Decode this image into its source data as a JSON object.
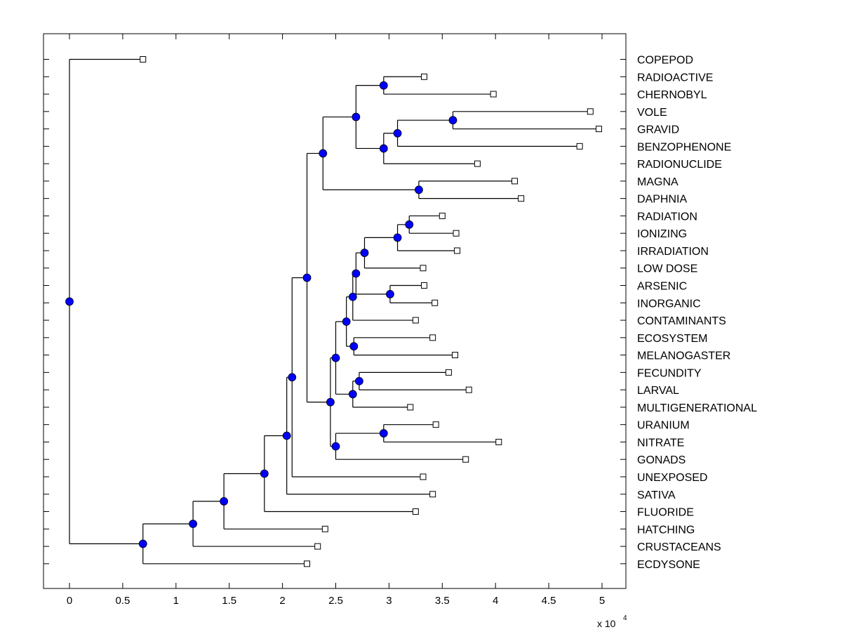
{
  "chart_data": {
    "type": "dendrogram",
    "title": "",
    "xlabel": "",
    "ylabel": "",
    "x_multiplier_label": "x 10",
    "x_multiplier_exponent": "4",
    "xlim": [
      -0.24,
      5.24
    ],
    "xticks": [
      0,
      0.5,
      1,
      1.5,
      2,
      2.5,
      3,
      3.5,
      4,
      4.5,
      5
    ],
    "xtick_labels": [
      "0",
      "0.5",
      "1",
      "1.5",
      "2",
      "2.5",
      "3",
      "3.5",
      "4",
      "4.5",
      "5"
    ],
    "leaf_order": [
      "COPEPOD",
      "RADIOACTIVE",
      "CHERNOBYL",
      "VOLE",
      "GRAVID",
      "BENZOPHENONE",
      "RADIONUCLIDE",
      "MAGNA",
      "DAPHNIA",
      "RADIATION",
      "IONIZING",
      "IRRADIATION",
      "LOW DOSE",
      "ARSENIC",
      "INORGANIC",
      "CONTAMINANTS",
      "ECOSYSTEM",
      "MELANOGASTER",
      "FECUNDITY",
      "LARVAL",
      "MULTIGENERATIONAL",
      "URANIUM",
      "NITRATE",
      "GONADS",
      "UNEXPOSED",
      "SATIVA",
      "FLUORIDE",
      "HATCHING",
      "CRUSTACEANS",
      "ECDYSONE"
    ],
    "node_color": "#0000ff",
    "leaf_marker": "open-square",
    "tree": {
      "x": 0,
      "children": [
        {
          "leaf": "COPEPOD",
          "x": 0.69
        },
        {
          "x": 0.69,
          "children": [
            {
              "x": 1.16,
              "children": [
                {
                  "x": 1.45,
                  "children": [
                    {
                      "x": 1.83,
                      "children": [
                        {
                          "x": 2.04,
                          "children": [
                            {
                              "x": 2.09,
                              "children": [
                                {
                                  "x": 2.23,
                                  "children": [
                                    {
                                      "x": 2.38,
                                      "children": [
                                        {
                                          "x": 2.69,
                                          "children": [
                                            {
                                              "x": 2.95,
                                              "children": [
                                                {
                                                  "leaf": "RADIOACTIVE",
                                                  "x": 3.33
                                                },
                                                {
                                                  "leaf": "CHERNOBYL",
                                                  "x": 3.98
                                                }
                                              ]
                                            },
                                            {
                                              "x": 2.95,
                                              "children": [
                                                {
                                                  "x": 3.08,
                                                  "children": [
                                                    {
                                                      "x": 3.6,
                                                      "children": [
                                                        {
                                                          "leaf": "VOLE",
                                                          "x": 4.89
                                                        },
                                                        {
                                                          "leaf": "GRAVID",
                                                          "x": 4.97
                                                        }
                                                      ]
                                                    },
                                                    {
                                                      "leaf": "BENZOPHENONE",
                                                      "x": 4.79
                                                    }
                                                  ]
                                                },
                                                {
                                                  "leaf": "RADIONUCLIDE",
                                                  "x": 3.83
                                                }
                                              ]
                                            }
                                          ]
                                        },
                                        {
                                          "x": 3.28,
                                          "children": [
                                            {
                                              "leaf": "MAGNA",
                                              "x": 4.18
                                            },
                                            {
                                              "leaf": "DAPHNIA",
                                              "x": 4.24
                                            }
                                          ]
                                        }
                                      ]
                                    },
                                    {
                                      "x": 2.45,
                                      "children": [
                                        {
                                          "x": 2.5,
                                          "children": [
                                            {
                                              "x": 2.6,
                                              "children": [
                                                {
                                                  "x": 2.66,
                                                  "children": [
                                                    {
                                                      "x": 2.69,
                                                      "children": [
                                                        {
                                                          "x": 2.77,
                                                          "children": [
                                                            {
                                                              "x": 3.08,
                                                              "children": [
                                                                {
                                                                  "x": 3.19,
                                                                  "children": [
                                                                    {
                                                                      "leaf": "RADIATION",
                                                                      "x": 3.5
                                                                    },
                                                                    {
                                                                      "leaf": "IONIZING",
                                                                      "x": 3.63
                                                                    }
                                                                  ]
                                                                },
                                                                {
                                                                  "leaf": "IRRADIATION",
                                                                  "x": 3.64
                                                                }
                                                              ]
                                                            },
                                                            {
                                                              "leaf": "LOW DOSE",
                                                              "x": 3.32
                                                            }
                                                          ]
                                                        },
                                                        {
                                                          "x": 3.01,
                                                          "children": [
                                                            {
                                                              "leaf": "ARSENIC",
                                                              "x": 3.33
                                                            },
                                                            {
                                                              "leaf": "INORGANIC",
                                                              "x": 3.43
                                                            }
                                                          ]
                                                        }
                                                      ]
                                                    },
                                                    {
                                                      "leaf": "CONTAMINANTS",
                                                      "x": 3.25
                                                    }
                                                  ]
                                                },
                                                {
                                                  "x": 2.67,
                                                  "children": [
                                                    {
                                                      "leaf": "ECOSYSTEM",
                                                      "x": 3.41
                                                    },
                                                    {
                                                      "leaf": "MELANOGASTER",
                                                      "x": 3.62
                                                    }
                                                  ]
                                                }
                                              ]
                                            },
                                            {
                                              "x": 2.66,
                                              "children": [
                                                {
                                                  "x": 2.72,
                                                  "children": [
                                                    {
                                                      "leaf": "FECUNDITY",
                                                      "x": 3.56
                                                    },
                                                    {
                                                      "leaf": "LARVAL",
                                                      "x": 3.75
                                                    }
                                                  ]
                                                },
                                                {
                                                  "leaf": "MULTIGENERATIONAL",
                                                  "x": 3.2
                                                }
                                              ]
                                            }
                                          ]
                                        },
                                        {
                                          "x": 2.5,
                                          "children": [
                                            {
                                              "x": 2.95,
                                              "children": [
                                                {
                                                  "leaf": "URANIUM",
                                                  "x": 3.44
                                                },
                                                {
                                                  "leaf": "NITRATE",
                                                  "x": 4.03
                                                }
                                              ]
                                            },
                                            {
                                              "leaf": "GONADS",
                                              "x": 3.72
                                            }
                                          ]
                                        }
                                      ]
                                    }
                                  ]
                                },
                                {
                                  "leaf": "UNEXPOSED",
                                  "x": 3.32
                                }
                              ]
                            },
                            {
                              "leaf": "SATIVA",
                              "x": 3.41
                            }
                          ]
                        },
                        {
                          "leaf": "FLUORIDE",
                          "x": 3.25
                        }
                      ]
                    },
                    {
                      "leaf": "HATCHING",
                      "x": 2.4
                    }
                  ]
                },
                {
                  "leaf": "CRUSTACEANS",
                  "x": 2.33
                }
              ]
            },
            {
              "leaf": "ECDYSONE",
              "x": 2.23
            }
          ]
        }
      ]
    }
  }
}
